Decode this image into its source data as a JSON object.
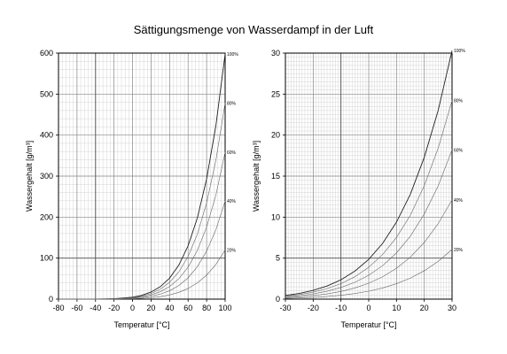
{
  "figure": {
    "title": "Sättigungsmenge von Wasserdampf in der Luft"
  },
  "chart_data": [
    {
      "type": "line",
      "title": "",
      "xlabel": "Temperatur [°C]",
      "ylabel": "Wassergehalt [g/m³]",
      "xlim": [
        -80,
        100
      ],
      "ylim": [
        0,
        600
      ],
      "xticks": [
        -80,
        -60,
        -40,
        -20,
        0,
        20,
        40,
        60,
        80,
        100
      ],
      "yticks": [
        0,
        100,
        200,
        300,
        400,
        500,
        600
      ],
      "grid": true,
      "x": [
        -80,
        -60,
        -40,
        -20,
        0,
        10,
        20,
        30,
        40,
        50,
        60,
        70,
        80,
        90,
        100
      ],
      "series": [
        {
          "name": "100%",
          "values": [
            0.0005,
            0.02,
            0.12,
            0.9,
            4.8,
            9.4,
            17.3,
            30.4,
            51.1,
            83.0,
            130.2,
            198.0,
            293.0,
            423.0,
            598.0
          ]
        },
        {
          "name": "80%",
          "values": [
            0.0004,
            0.016,
            0.1,
            0.7,
            3.8,
            7.5,
            13.8,
            24.3,
            40.9,
            66.4,
            104.2,
            158.4,
            234.4,
            338.4,
            478.4
          ]
        },
        {
          "name": "60%",
          "values": [
            0.0003,
            0.012,
            0.07,
            0.5,
            2.9,
            5.6,
            10.4,
            18.2,
            30.7,
            49.8,
            78.1,
            118.8,
            175.8,
            253.8,
            358.8
          ]
        },
        {
          "name": "40%",
          "values": [
            0.0002,
            0.008,
            0.05,
            0.4,
            1.9,
            3.8,
            6.9,
            12.2,
            20.4,
            33.2,
            52.1,
            79.2,
            117.2,
            169.2,
            239.2
          ]
        },
        {
          "name": "20%",
          "values": [
            0.0001,
            0.004,
            0.02,
            0.2,
            1.0,
            1.9,
            3.5,
            6.1,
            10.2,
            16.6,
            26.0,
            39.6,
            58.6,
            84.6,
            119.6
          ]
        }
      ]
    },
    {
      "type": "line",
      "title": "",
      "xlabel": "Temperatur [°C]",
      "ylabel": "Wassergehalt [g/m³]",
      "xlim": [
        -30,
        30
      ],
      "ylim": [
        0,
        30
      ],
      "xticks": [
        -30,
        -20,
        -10,
        0,
        10,
        20,
        30
      ],
      "yticks": [
        0,
        5,
        10,
        15,
        20,
        25,
        30
      ],
      "grid": true,
      "x": [
        -30,
        -25,
        -20,
        -15,
        -10,
        -5,
        0,
        5,
        10,
        15,
        20,
        25,
        30
      ],
      "series": [
        {
          "name": "100%",
          "values": [
            0.45,
            0.7,
            1.07,
            1.6,
            2.36,
            3.41,
            4.85,
            6.8,
            9.4,
            12.8,
            17.3,
            23.0,
            30.3
          ]
        },
        {
          "name": "80%",
          "values": [
            0.36,
            0.56,
            0.86,
            1.28,
            1.89,
            2.73,
            3.88,
            5.44,
            7.52,
            10.24,
            13.84,
            18.4,
            24.2
          ]
        },
        {
          "name": "60%",
          "values": [
            0.27,
            0.42,
            0.64,
            0.96,
            1.42,
            2.05,
            2.91,
            4.08,
            5.64,
            7.68,
            10.38,
            13.8,
            18.2
          ]
        },
        {
          "name": "40%",
          "values": [
            0.18,
            0.28,
            0.43,
            0.64,
            0.94,
            1.36,
            1.94,
            2.72,
            3.76,
            5.12,
            6.92,
            9.2,
            12.1
          ]
        },
        {
          "name": "20%",
          "values": [
            0.09,
            0.14,
            0.21,
            0.32,
            0.47,
            0.68,
            0.97,
            1.36,
            1.88,
            2.56,
            3.46,
            4.6,
            6.06
          ]
        }
      ]
    }
  ]
}
